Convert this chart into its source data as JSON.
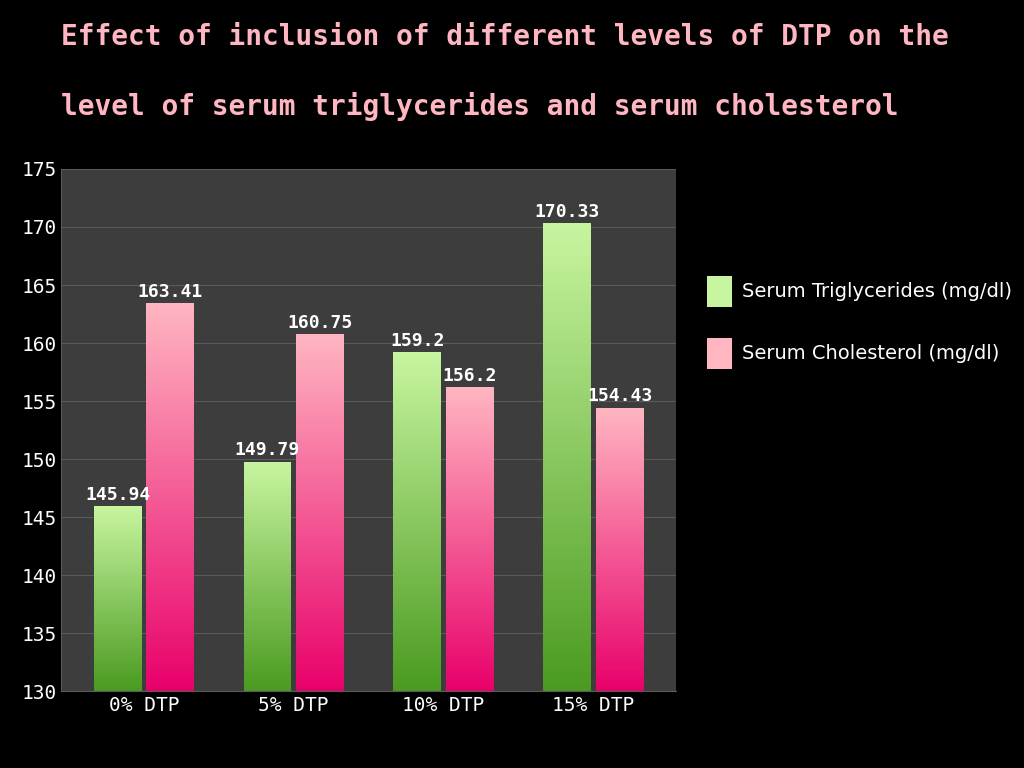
{
  "title_line1": "Effect of inclusion of different levels of DTP on the",
  "title_line2": "level of serum triglycerides and serum cholesterol",
  "categories": [
    "0% DTP",
    "5% DTP",
    "10% DTP",
    "15% DTP"
  ],
  "triglycerides": [
    145.94,
    149.79,
    159.2,
    170.33
  ],
  "cholesterol": [
    163.41,
    160.75,
    156.2,
    154.43
  ],
  "trig_label": "Serum Triglycerides (mg/dl)",
  "chol_label": "Serum Cholesterol (mg/dl)",
  "ylim_min": 130,
  "ylim_max": 175,
  "yticks": [
    130,
    135,
    140,
    145,
    150,
    155,
    160,
    165,
    170,
    175
  ],
  "background_outer": "#000000",
  "background_plot": "#3d3d3d",
  "title_color": "#ffb6c1",
  "tick_label_color": "#ffffff",
  "bar_width": 0.32,
  "bar_gap": 0.03,
  "trig_color_top": "#c8f5a0",
  "trig_color_bottom": "#4a9a20",
  "chol_color_top": "#ffb6c1",
  "chol_color_bottom": "#e8006a",
  "grid_color": "#5a5a5a",
  "value_label_color": "#ffffff",
  "value_label_fontsize": 13,
  "title_fontsize": 20,
  "tick_fontsize": 14,
  "legend_fontsize": 14,
  "category_fontsize": 14,
  "legend_text_color": "#ffffff"
}
